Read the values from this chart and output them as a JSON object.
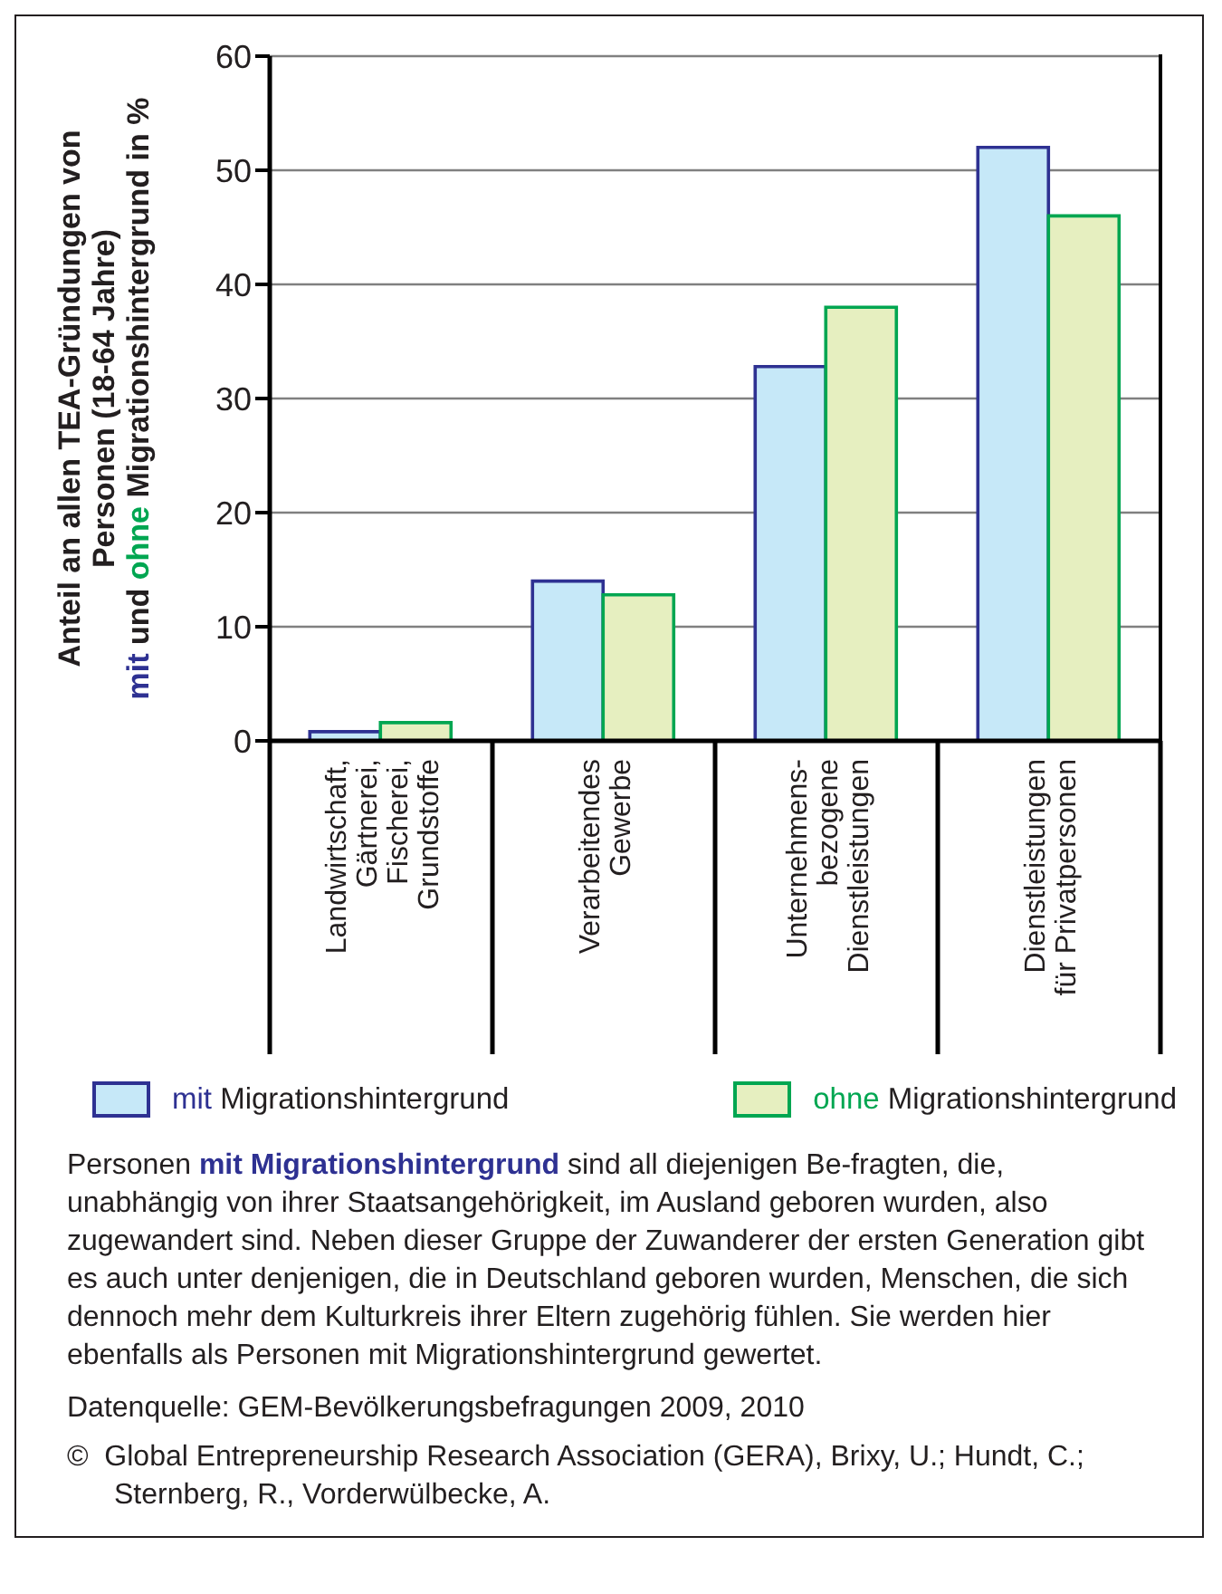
{
  "chart_data": {
    "type": "bar",
    "ylabel": "Anteil an allen TEA-Gründungen von\nPersonen (18-64 Jahre)\nmit und ohne Migrationshintergrund  in %",
    "categories": [
      "Landwirtschaft,\nGärtnerei,\nFischerei,\nGrundstoffe",
      "Verarbeitendes\nGewerbe",
      "Unternehmens-\nbezogene\nDienstleistungen",
      "Dienstleistungen\nfür Privatpersonen"
    ],
    "series": [
      {
        "name": "mit Migrationshintergrund",
        "color": "#c6e8f8",
        "values": [
          0.8,
          14,
          32.8,
          52
        ]
      },
      {
        "name": "ohne Migrationshintergrund",
        "color": "#e6efc0",
        "values": [
          1.6,
          12.8,
          38,
          46
        ]
      }
    ],
    "ylim": [
      0,
      60
    ],
    "yticks": [
      0,
      10,
      20,
      30,
      40,
      50,
      60
    ],
    "grid": "y",
    "legend": "bottom",
    "annotations": [
      "Personen mit Migrationshintergrund sind all diejenigen Be-fragten, die, unabhängig von ihrer Staatsangehörigkeit, im Ausland geboren wurden, also zugewandert sind. Neben dieser Gruppe der Zuwanderer der ersten Generation gibt es auch unter denjenigen, die in Deutschland geboren wurden, Menschen, die sich dennoch mehr dem Kulturkreis ihrer Eltern zugehörig fühlen. Sie werden hier ebenfalls als Personen mit Migrationshintergrund gewertet.",
      "Datenquelle: GEM-Bevölkerungsbefragungen 2009, 2010",
      "©  Global Entrepreneurship Research Association (GERA), Brixy, U.; Hundt, C.; Sternberg, R., Vorderwülbecke, A."
    ]
  }
}
